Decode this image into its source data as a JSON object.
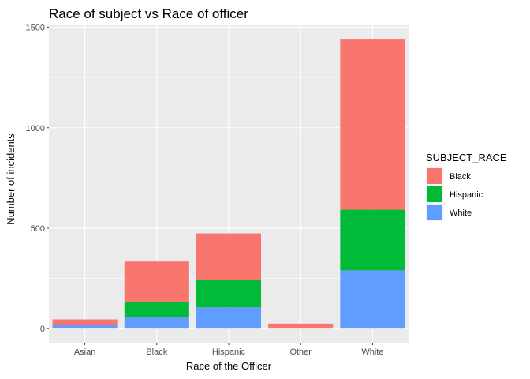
{
  "chart_data": {
    "type": "bar",
    "stacked": true,
    "title": "Race of subject vs Race of officer",
    "xlabel": "Race of the Officer",
    "ylabel": "Number of incidents",
    "categories": [
      "Asian",
      "Black",
      "Hispanic",
      "Other",
      "White"
    ],
    "series": [
      {
        "name": "White",
        "color": "#619CFF",
        "values": [
          19,
          57,
          106,
          0,
          290
        ]
      },
      {
        "name": "Hispanic",
        "color": "#00BA38",
        "values": [
          0,
          77,
          136,
          0,
          302
        ]
      },
      {
        "name": "Black",
        "color": "#F8766D",
        "values": [
          27,
          200,
          232,
          25,
          847
        ]
      }
    ],
    "ylim": [
      -70,
      1510
    ],
    "yticks": [
      0,
      500,
      1000,
      1500
    ],
    "grid": true,
    "legend": {
      "title": "SUBJECT_RACE",
      "placement": "right",
      "items": [
        {
          "label": "Black",
          "color": "#F8766D"
        },
        {
          "label": "Hispanic",
          "color": "#00BA38"
        },
        {
          "label": "White",
          "color": "#619CFF"
        }
      ]
    },
    "panel_background": "#EBEBEB",
    "grid_color": "#FFFFFF"
  }
}
